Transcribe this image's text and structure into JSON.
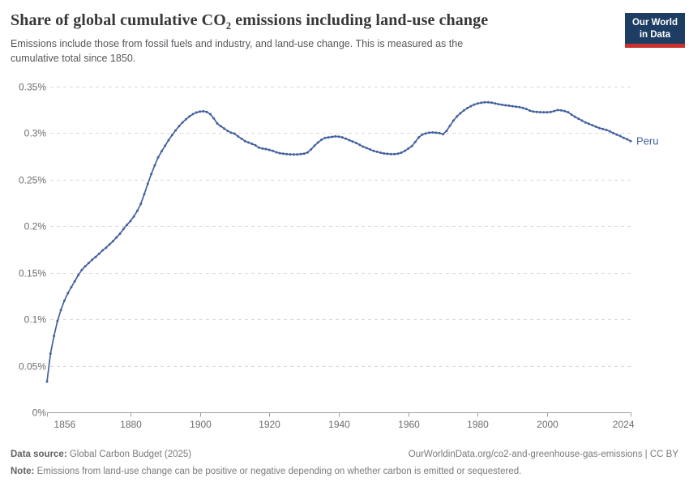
{
  "header": {
    "title_pre": "Share of global cumulative CO",
    "title_sub": "2",
    "title_post": " emissions including land-use change",
    "subtitle": "Emissions include those from fossil fuels and industry, and land-use change. This is measured as the cumulative total since 1850."
  },
  "logo": {
    "line1": "Our World",
    "line2": "in Data"
  },
  "footer": {
    "datasource_label": "Data source:",
    "datasource_value": " Global Carbon Budget (2025)",
    "attribution": "OurWorldinData.org/co2-and-greenhouse-gas-emissions | CC BY",
    "note_label": "Note:",
    "note_value": " Emissions from land-use change can be positive or negative depending on whether carbon is emitted or sequestered."
  },
  "chart_data": {
    "type": "line",
    "title": "Share of global cumulative CO2 emissions including land-use change",
    "xlabel": "",
    "ylabel": "",
    "xlim": [
      1856,
      2024
    ],
    "ylim": [
      0,
      0.35
    ],
    "grid": "horizontal-dashed",
    "legend_position": "end-of-line-label",
    "x_ticks": [
      1856,
      1880,
      1900,
      1920,
      1940,
      1960,
      1980,
      2000,
      2024
    ],
    "y_ticks": [
      {
        "value": 0.0,
        "label": "0%"
      },
      {
        "value": 0.05,
        "label": "0.05%"
      },
      {
        "value": 0.1,
        "label": "0.1%"
      },
      {
        "value": 0.15,
        "label": "0.15%"
      },
      {
        "value": 0.2,
        "label": "0.2%"
      },
      {
        "value": 0.25,
        "label": "0.25%"
      },
      {
        "value": 0.3,
        "label": "0.3%"
      },
      {
        "value": 0.35,
        "label": "0.35%"
      }
    ],
    "unit": "%",
    "colors": {
      "line": "#44619f",
      "grid": "#d9d9d9",
      "axis": "#a0a0a0",
      "tick_text": "#6d6d6d"
    },
    "series": [
      {
        "name": "Peru",
        "color": "#44619f",
        "start_year": 1856,
        "end_year": 2024,
        "values": [
          0.033,
          0.063,
          0.082,
          0.098,
          0.11,
          0.12,
          0.128,
          0.1345,
          0.141,
          0.1475,
          0.153,
          0.157,
          0.1605,
          0.164,
          0.167,
          0.1705,
          0.174,
          0.177,
          0.1805,
          0.184,
          0.188,
          0.192,
          0.197,
          0.2015,
          0.2055,
          0.2105,
          0.2165,
          0.224,
          0.2345,
          0.2455,
          0.256,
          0.2655,
          0.274,
          0.2805,
          0.2865,
          0.2925,
          0.298,
          0.303,
          0.3075,
          0.3115,
          0.315,
          0.318,
          0.3205,
          0.3222,
          0.3232,
          0.3235,
          0.3228,
          0.3205,
          0.316,
          0.3105,
          0.3075,
          0.305,
          0.3025,
          0.3005,
          0.2995,
          0.2965,
          0.294,
          0.2915,
          0.29,
          0.2885,
          0.287,
          0.2845,
          0.2835,
          0.283,
          0.282,
          0.281,
          0.2795,
          0.2785,
          0.278,
          0.2775,
          0.2772,
          0.2772,
          0.2772,
          0.2775,
          0.278,
          0.2792,
          0.2825,
          0.2865,
          0.29,
          0.293,
          0.295,
          0.2955,
          0.296,
          0.2965,
          0.2963,
          0.2955,
          0.294,
          0.2925,
          0.291,
          0.2895,
          0.2875,
          0.2855,
          0.284,
          0.2825,
          0.281,
          0.28,
          0.279,
          0.2782,
          0.2778,
          0.2775,
          0.2775,
          0.278,
          0.279,
          0.281,
          0.2835,
          0.286,
          0.2905,
          0.2955,
          0.2985,
          0.2998,
          0.3005,
          0.3008,
          0.3005,
          0.3,
          0.299,
          0.3025,
          0.308,
          0.3135,
          0.318,
          0.3215,
          0.3245,
          0.327,
          0.329,
          0.3308,
          0.332,
          0.3327,
          0.3332,
          0.3332,
          0.3328,
          0.332,
          0.3312,
          0.3305,
          0.33,
          0.3295,
          0.329,
          0.3285,
          0.328,
          0.3272,
          0.326,
          0.3242,
          0.3232,
          0.3228,
          0.3226,
          0.3225,
          0.3225,
          0.3228,
          0.3238,
          0.3248,
          0.3245,
          0.3238,
          0.3225,
          0.32,
          0.3175,
          0.3155,
          0.3135,
          0.3115,
          0.31,
          0.3085,
          0.307,
          0.3055,
          0.3045,
          0.3035,
          0.302,
          0.3,
          0.2985,
          0.297,
          0.295,
          0.2935,
          0.2915
        ]
      }
    ]
  }
}
